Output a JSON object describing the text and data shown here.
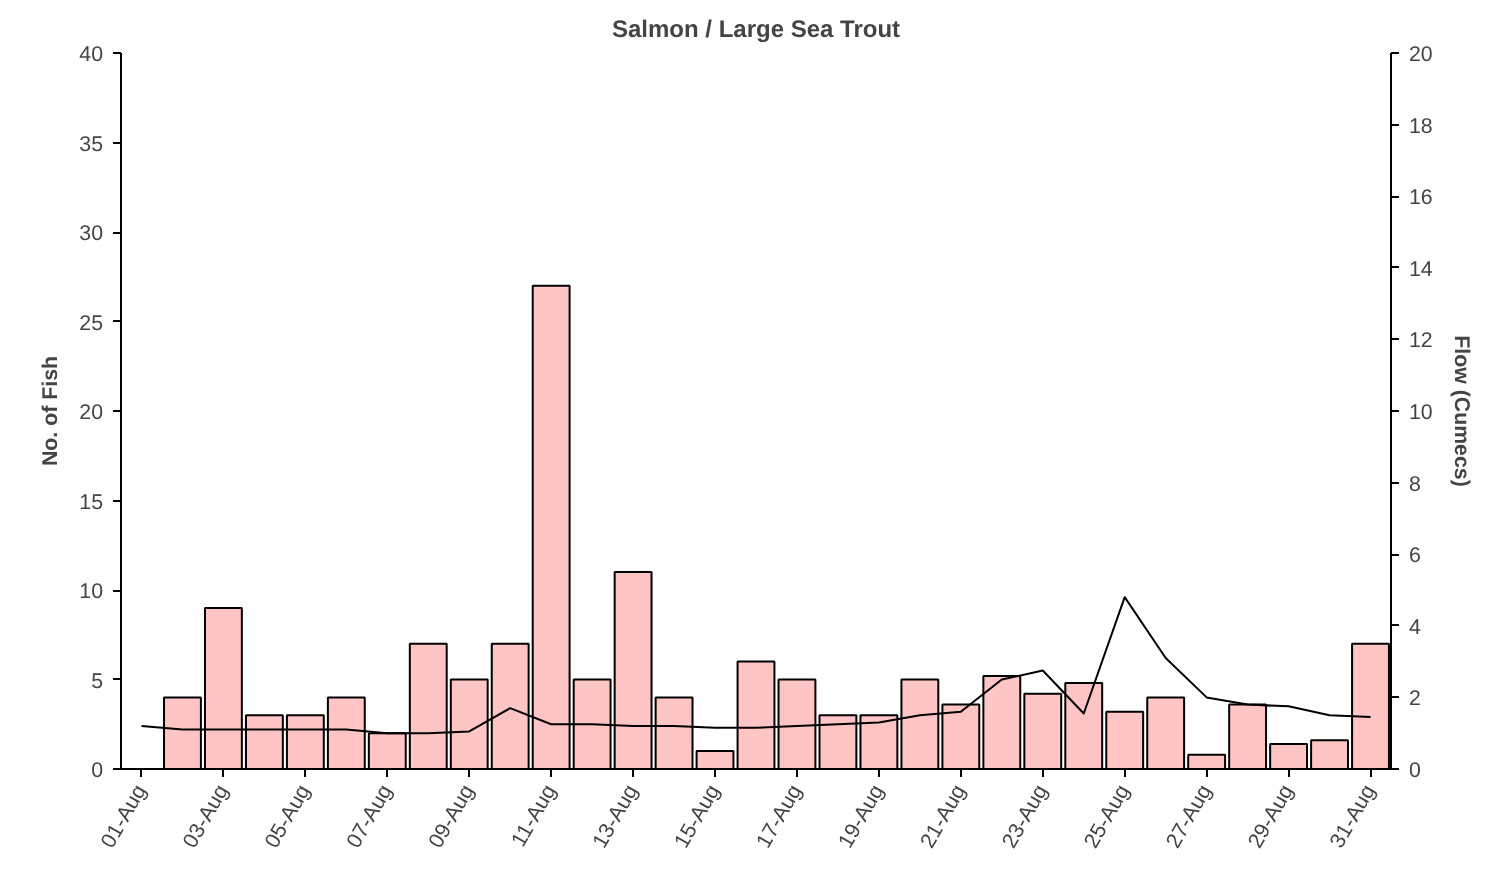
{
  "chart_data": {
    "type": "bar",
    "title": "Salmon / Large Sea Trout",
    "ylabel": "No. of Fish",
    "y2label": "Flow (Cumecs)",
    "categories": [
      "01-Aug",
      null,
      "03-Aug",
      null,
      "05-Aug",
      null,
      "07-Aug",
      null,
      "09-Aug",
      null,
      "11-Aug",
      null,
      "13-Aug",
      null,
      "15-Aug",
      null,
      "17-Aug",
      null,
      "19-Aug",
      null,
      "21-Aug",
      null,
      "23-Aug",
      null,
      "25-Aug",
      null,
      "27-Aug",
      null,
      "29-Aug",
      null,
      "31-Aug"
    ],
    "series": [
      {
        "color": "#ffc4c4",
        "values": [
          null,
          4,
          9,
          3,
          3,
          4,
          2,
          7,
          5,
          7,
          27,
          5,
          11,
          4,
          1,
          6,
          5,
          3,
          3,
          5,
          3.6,
          5.2,
          4.2,
          4.8,
          3.2,
          4,
          0.8,
          3.6,
          1.4,
          1.6,
          7
        ]
      },
      {
        "type": "line",
        "axis": "y2",
        "color": "#000000",
        "values": [
          1.2,
          1.1,
          1.1,
          1.1,
          1.1,
          1.1,
          1.0,
          1.0,
          1.05,
          1.7,
          1.25,
          1.25,
          1.2,
          1.2,
          1.15,
          1.15,
          1.2,
          1.25,
          1.3,
          1.5,
          1.6,
          2.5,
          2.75,
          1.55,
          4.8,
          3.1,
          2.0,
          1.8,
          1.75,
          1.5,
          1.45
        ]
      }
    ],
    "ylim": [
      0,
      40
    ],
    "yticks": [
      0,
      5,
      10,
      15,
      20,
      25,
      30,
      35,
      40
    ],
    "y2lim": [
      0,
      20
    ],
    "y2ticks": [
      0,
      2,
      4,
      6,
      8,
      10,
      12,
      14,
      16,
      18,
      20
    ],
    "grid": false,
    "marker": "none",
    "line_style": "solid"
  }
}
